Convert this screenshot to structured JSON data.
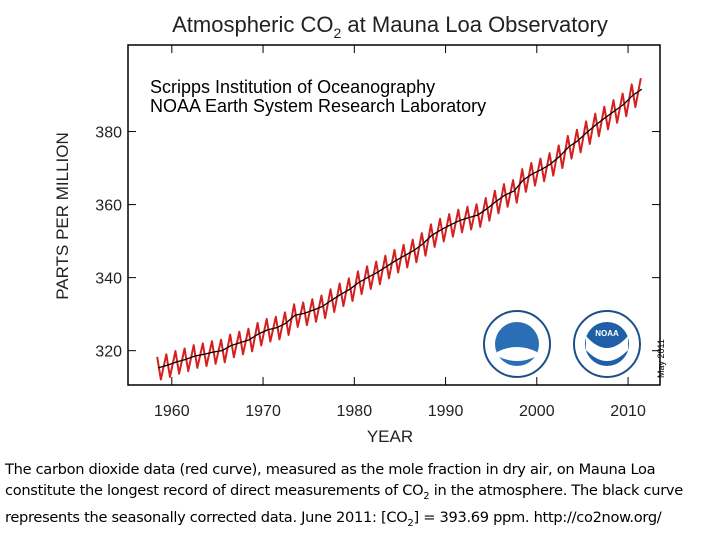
{
  "chart_data": {
    "type": "line",
    "title": [
      "Atmospheric CO",
      "2",
      " at Mauna Loa Observatory"
    ],
    "annotations": [
      "Scripps Institution of Oceanography",
      "NOAA Earth System Research Laboratory",
      "May 2011"
    ],
    "xlabel": "YEAR",
    "ylabel": "PARTS PER MILLION",
    "xlim": [
      1955.2,
      2013.5
    ],
    "ylim": [
      310.6,
      403.7
    ],
    "xticks": [
      1960,
      1970,
      1980,
      1990,
      2000,
      2010
    ],
    "yticks": [
      320,
      340,
      360,
      380
    ],
    "series": [
      {
        "color": "#d62020",
        "x": [
          1958.4,
          1958.8,
          1959.4,
          1959.8,
          1960.4,
          1960.8,
          1961.4,
          1961.8,
          1962.4,
          1962.8,
          1963.4,
          1963.8,
          1964.4,
          1964.8,
          1965.4,
          1965.8,
          1966.4,
          1966.8,
          1967.4,
          1967.8,
          1968.4,
          1968.8,
          1969.4,
          1969.8,
          1970.4,
          1970.8,
          1971.4,
          1971.8,
          1972.4,
          1972.8,
          1973.4,
          1973.8,
          1974.4,
          1974.8,
          1975.4,
          1975.8,
          1976.4,
          1976.8,
          1977.4,
          1977.8,
          1978.4,
          1978.8,
          1979.4,
          1979.8,
          1980.4,
          1980.8,
          1981.4,
          1981.8,
          1982.4,
          1982.8,
          1983.4,
          1983.8,
          1984.4,
          1984.8,
          1985.4,
          1985.8,
          1986.4,
          1986.8,
          1987.4,
          1987.8,
          1988.4,
          1988.8,
          1989.4,
          1989.8,
          1990.4,
          1990.8,
          1991.4,
          1991.8,
          1992.4,
          1992.8,
          1993.4,
          1993.8,
          1994.4,
          1994.8,
          1995.4,
          1995.8,
          1996.4,
          1996.8,
          1997.4,
          1997.8,
          1998.4,
          1998.8,
          1999.4,
          1999.8,
          2000.4,
          2000.8,
          2001.4,
          2001.8,
          2002.4,
          2002.8,
          2003.4,
          2003.8,
          2004.4,
          2004.8,
          2005.4,
          2005.8,
          2006.4,
          2006.8,
          2007.4,
          2007.8,
          2008.4,
          2008.8,
          2009.4,
          2009.8,
          2010.4,
          2010.8,
          2011.4
        ],
        "values": [
          318.3,
          312.1,
          319.0,
          312.8,
          319.9,
          313.7,
          320.6,
          314.4,
          321.5,
          315.3,
          322.0,
          315.8,
          322.6,
          316.4,
          323.0,
          316.8,
          324.4,
          318.2,
          325.2,
          319.0,
          326.0,
          319.8,
          327.6,
          321.4,
          328.7,
          322.5,
          329.3,
          323.1,
          330.5,
          324.3,
          332.7,
          326.5,
          333.2,
          327.0,
          334.1,
          327.9,
          335.1,
          328.9,
          336.8,
          330.6,
          338.4,
          332.2,
          339.8,
          333.6,
          341.7,
          335.5,
          343.1,
          336.9,
          344.4,
          338.2,
          346.0,
          339.8,
          347.6,
          341.4,
          349.0,
          342.8,
          350.4,
          344.2,
          352.2,
          346.0,
          354.6,
          348.4,
          356.1,
          349.9,
          357.4,
          351.2,
          358.6,
          352.4,
          359.4,
          353.2,
          360.1,
          353.9,
          361.8,
          355.6,
          363.8,
          357.6,
          365.6,
          359.4,
          366.7,
          360.5,
          369.7,
          363.5,
          371.4,
          365.2,
          372.6,
          366.4,
          374.1,
          367.9,
          376.2,
          370.0,
          378.8,
          372.6,
          380.5,
          374.3,
          382.8,
          376.6,
          384.9,
          378.7,
          386.8,
          380.6,
          388.6,
          382.4,
          390.4,
          384.2,
          392.9,
          386.7,
          394.6
        ]
      },
      {
        "color": "#000000",
        "x": [
          1958.5,
          1959.5,
          1960.5,
          1961.5,
          1962.5,
          1963.5,
          1964.5,
          1965.5,
          1966.5,
          1967.5,
          1968.5,
          1969.5,
          1970.5,
          1971.5,
          1972.5,
          1973.5,
          1974.5,
          1975.5,
          1976.5,
          1977.5,
          1978.5,
          1979.5,
          1980.5,
          1981.5,
          1982.5,
          1983.5,
          1984.5,
          1985.5,
          1986.5,
          1987.5,
          1988.5,
          1989.5,
          1990.5,
          1991.5,
          1992.5,
          1993.5,
          1994.5,
          1995.5,
          1996.5,
          1997.5,
          1998.5,
          1999.5,
          2000.5,
          2001.5,
          2002.5,
          2003.5,
          2004.5,
          2005.5,
          2006.5,
          2007.5,
          2008.5,
          2009.5,
          2010.5,
          2011.5
        ],
        "values": [
          315.3,
          316.0,
          316.9,
          317.6,
          318.5,
          319.0,
          319.6,
          320.0,
          321.4,
          322.2,
          323.0,
          324.6,
          325.7,
          326.3,
          327.5,
          329.7,
          330.2,
          331.1,
          332.1,
          333.8,
          335.4,
          336.8,
          338.7,
          340.1,
          341.4,
          343.0,
          344.6,
          346.0,
          347.4,
          349.2,
          351.6,
          353.1,
          354.4,
          355.6,
          356.4,
          357.1,
          358.8,
          360.8,
          362.6,
          363.7,
          366.7,
          368.4,
          369.6,
          371.1,
          373.2,
          375.8,
          377.5,
          379.8,
          381.9,
          383.8,
          385.6,
          387.4,
          389.9,
          391.6
        ]
      }
    ]
  },
  "caption": [
    "The carbon dioxide data (red curve), measured as the mole fraction in dry air, on Mauna Loa constitute the longest record of direct measurements of CO",
    "2",
    " in the atmosphere. The black curve represents the seasonally corrected data.  June 2011: [CO",
    "2",
    "] = 393.69 ppm.  http://co2now.org/"
  ]
}
